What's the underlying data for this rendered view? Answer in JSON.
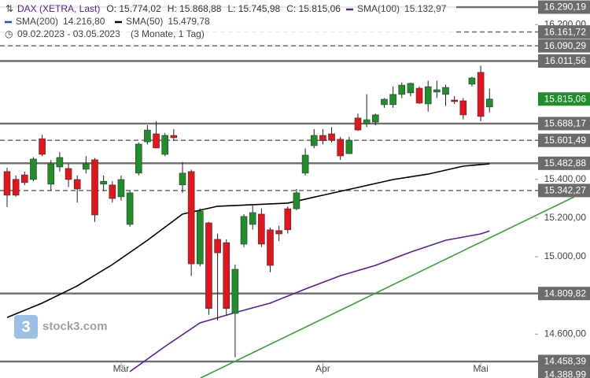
{
  "chart_data": {
    "type": "candlestick",
    "title": "DAX (XETRA, Last)",
    "ohlc_labels": [
      "O: 15.774,02",
      "H: 15.868,88",
      "L: 15.745,98",
      "C: 15.815,06"
    ],
    "period": "09.02.2023 - 03.05.2023",
    "period_note": "(3 Monate, 1 Tag)",
    "watermark": "stock3.com",
    "categories": [
      null,
      null,
      null,
      null,
      null,
      null,
      null,
      null,
      null,
      null,
      null,
      null,
      null,
      "Mär",
      null,
      null,
      null,
      null,
      null,
      null,
      null,
      null,
      null,
      null,
      null,
      null,
      null,
      null,
      null,
      null,
      null,
      null,
      null,
      null,
      null,
      null,
      "Apr",
      null,
      null,
      null,
      null,
      null,
      null,
      null,
      null,
      null,
      null,
      null,
      null,
      null,
      null,
      null,
      null,
      null,
      "Mai",
      null
    ],
    "open": [
      15440,
      15400,
      15423,
      15399,
      15610,
      15375,
      15464,
      15456,
      15399,
      15452,
      15501,
      15375,
      15371,
      15310,
      15167,
      15432,
      15594,
      15635,
      15529,
      15627,
      15371,
      15440,
      14963,
      15175,
      15090,
      15073,
      14707,
      15065,
      15167,
      15220,
      15139,
      15135,
      15248,
      15248,
      15432,
      15574,
      15627,
      15635,
      15607,
      15533,
      15717,
      15688,
      15696,
      15786,
      15786,
      15839,
      15847,
      15871,
      15790,
      15851,
      15839,
      15810,
      15806,
      15892,
      15953,
      15774.02
    ],
    "high": [
      15460,
      15420,
      15440,
      15515,
      15630,
      15500,
      15540,
      15480,
      15420,
      15520,
      15510,
      15420,
      15390,
      15420,
      15340,
      15590,
      15680,
      15700,
      15640,
      15660,
      15490,
      15450,
      15250,
      15180,
      15120,
      15090,
      14960,
      15220,
      15270,
      15250,
      15150,
      15160,
      15260,
      15350,
      15560,
      15660,
      15660,
      15670,
      15620,
      15620,
      15740,
      15840,
      15740,
      15820,
      15880,
      15900,
      15900,
      15880,
      15910,
      15910,
      15890,
      15830,
      15820,
      15930,
      15988,
      15868.88
    ],
    "low": [
      15257,
      15310,
      15370,
      15390,
      15520,
      15340,
      15440,
      15360,
      15280,
      15430,
      15180,
      15340,
      15280,
      15290,
      15155,
      15420,
      15580,
      15560,
      15520,
      15600,
      15330,
      14900,
      14950,
      14700,
      14670,
      14700,
      14480,
      15050,
      15140,
      15050,
      14920,
      15080,
      15120,
      15240,
      15420,
      15560,
      15580,
      15590,
      15500,
      15530,
      15650,
      15670,
      15680,
      15770,
      15770,
      15820,
      15830,
      15790,
      15750,
      15820,
      15780,
      15790,
      15710,
      15880,
      15700,
      15745.98
    ],
    "close": [
      15318,
      15318,
      15383,
      15505,
      15529,
      15480,
      15513,
      15399,
      15350,
      15480,
      15216,
      15390,
      15301,
      15399,
      15330,
      15582,
      15655,
      15562,
      15627,
      15615,
      15432,
      14963,
      15236,
      14732,
      15020,
      14732,
      14935,
      15208,
      15228,
      15065,
      14955,
      15118,
      15139,
      15330,
      15525,
      15627,
      15600,
      15602,
      15521,
      15602,
      15655,
      15708,
      15733,
      15814,
      15839,
      15887,
      15896,
      15794,
      15879,
      15863,
      15875,
      15802,
      15733,
      15924,
      15725,
      15815.06
    ],
    "up_color": "#1f8f2b",
    "down_color": "#e3141b",
    "series": [
      {
        "name": "SMA(100)",
        "value_label": "15.132,97",
        "color": "#5a1ca3",
        "x": [
          14,
          18,
          22,
          26,
          30,
          34,
          38,
          42,
          46,
          50,
          54,
          55
        ],
        "values": [
          14406,
          14536,
          14658,
          14711,
          14760,
          14833,
          14902,
          14955,
          15024,
          15085,
          15118,
          15132.97
        ]
      },
      {
        "name": "SMA(200)",
        "value_label": "14.216,80",
        "color": "#2b48c4"
      },
      {
        "name": "SMA(50)",
        "value_label": "15.479,78",
        "color": "#000000",
        "x": [
          0,
          4,
          8,
          12,
          16,
          20,
          24,
          28,
          32,
          36,
          40,
          44,
          48,
          52,
          55
        ],
        "values": [
          14686,
          14760,
          14849,
          14959,
          15085,
          15220,
          15261,
          15269,
          15277,
          15318,
          15358,
          15399,
          15427,
          15468,
          15479.78
        ]
      }
    ],
    "ylim": [
      14373,
      16327
    ],
    "yticks": [
      {
        "value": 16200,
        "label": "16.200,00"
      },
      {
        "value": 15400,
        "label": "15.400,00"
      },
      {
        "value": 15200,
        "label": "15.200,00"
      },
      {
        "value": 15000,
        "label": "15.000,00"
      },
      {
        "value": 14600,
        "label": "14.600,00"
      }
    ],
    "levels": [
      {
        "value": 16290.19,
        "label": "16.290,19",
        "style": "solid"
      },
      {
        "value": 16161.72,
        "label": "16.161,72",
        "style": "dashed"
      },
      {
        "value": 16090.29,
        "label": "16.090,29",
        "style": "dashed"
      },
      {
        "value": 16011.56,
        "label": "16.011,56",
        "style": "solid"
      },
      {
        "value": 15815.06,
        "label": "15.815,06",
        "style": "current"
      },
      {
        "value": 15688.17,
        "label": "15.688,17",
        "style": "solid"
      },
      {
        "value": 15601.49,
        "label": "15.601,49",
        "style": "dashed"
      },
      {
        "value": 15482.88,
        "label": "15.482,88",
        "style": "solid"
      },
      {
        "value": 15342.27,
        "label": "15.342,27",
        "style": "dashed"
      },
      {
        "value": 14809.82,
        "label": "14.809,82",
        "style": "solid"
      },
      {
        "value": 14458.39,
        "label": "14.458,39",
        "style": "solid"
      },
      {
        "value": 14388.99,
        "label": "14.388,99",
        "style": "label"
      }
    ]
  }
}
